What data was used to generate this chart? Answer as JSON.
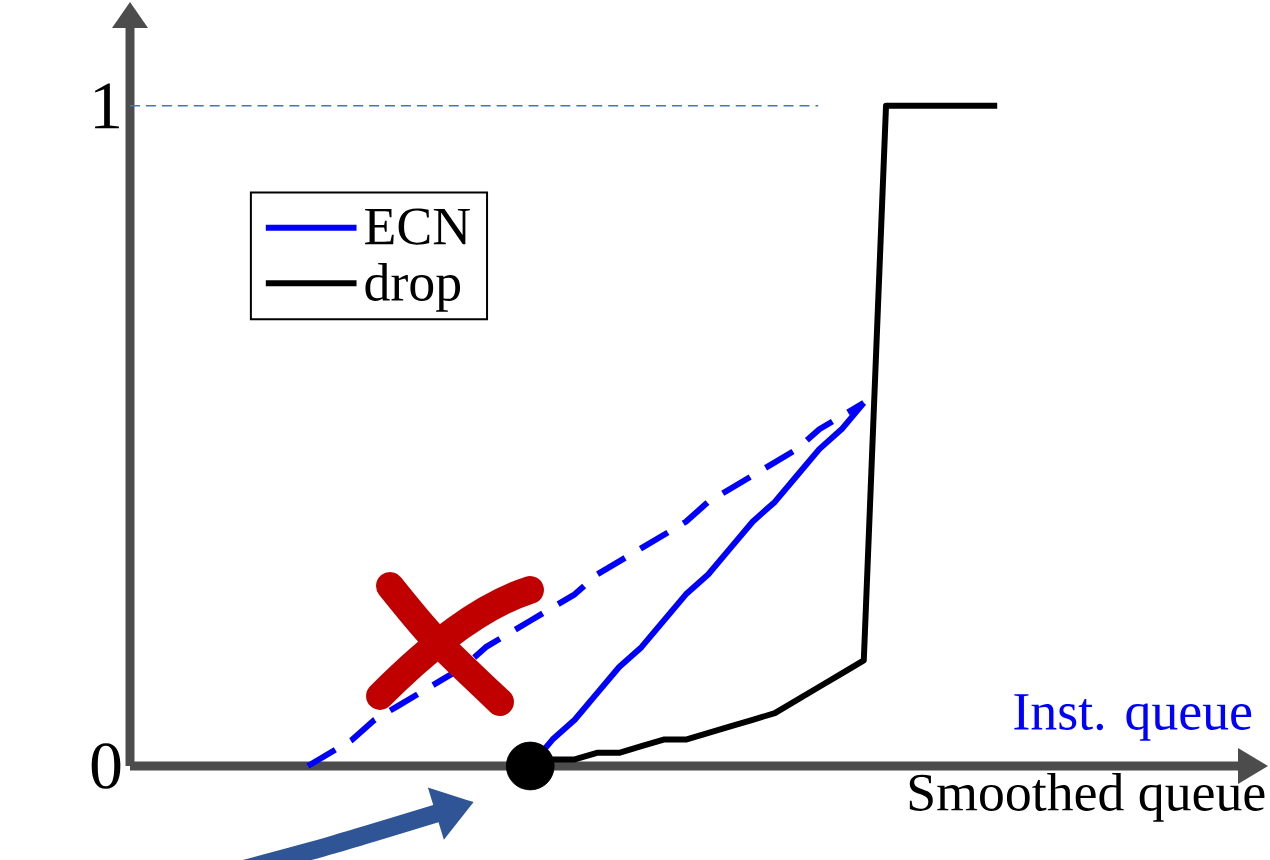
{
  "chart_data": {
    "type": "line",
    "xlabel": "Smoothed queue",
    "annotations": [
      "Inst. queue"
    ],
    "categories": [
      null,
      null,
      null,
      null,
      null,
      null,
      null,
      null,
      null,
      null,
      null,
      null,
      null,
      null,
      null,
      null,
      null,
      null,
      null,
      null,
      null,
      null,
      null,
      null,
      null,
      null,
      null,
      null,
      null,
      null,
      null,
      null,
      null,
      null,
      null,
      null,
      null,
      null,
      null,
      null
    ],
    "ylim": [
      0,
      1.13
    ],
    "yticks": [
      0,
      1
    ],
    "tick_labels": "y",
    "legend": "top left",
    "ref_lines": [
      {
        "axis": "y",
        "value": 1,
        "color": "#4472c4",
        "line_style": "dashed"
      }
    ],
    "series": [
      {
        "name": "ECN",
        "color": "#0000ff",
        "line_style": "solid",
        "values": [
          null,
          null,
          null,
          null,
          null,
          null,
          null,
          null,
          null,
          null,
          null,
          null,
          null,
          null,
          null,
          null,
          null,
          null,
          0,
          0.04,
          0.07,
          0.11,
          0.15,
          0.18,
          0.22,
          0.26,
          0.29,
          0.33,
          0.37,
          0.4,
          0.44,
          0.48,
          0.51,
          0.55,
          null,
          null,
          null,
          null,
          null,
          null
        ]
      },
      {
        "name": "drop",
        "color": "#000000",
        "line_style": "solid",
        "values": [
          null,
          null,
          null,
          null,
          null,
          null,
          null,
          null,
          null,
          null,
          null,
          null,
          null,
          null,
          null,
          null,
          null,
          null,
          0,
          0.01,
          0.01,
          0.02,
          0.02,
          0.03,
          0.04,
          0.04,
          0.05,
          0.06,
          0.07,
          0.08,
          0.1,
          0.12,
          0.14,
          0.16,
          1,
          1,
          1,
          1,
          1,
          1
        ]
      },
      {
        "color": "#0000ff",
        "line_style": "dashed",
        "values": [
          null,
          null,
          null,
          null,
          null,
          null,
          null,
          null,
          0,
          0.02,
          0.04,
          0.07,
          0.09,
          0.11,
          0.13,
          0.15,
          0.18,
          0.2,
          0.22,
          0.24,
          0.26,
          0.29,
          0.31,
          0.33,
          0.35,
          0.37,
          0.4,
          0.42,
          0.44,
          0.46,
          0.48,
          0.51,
          0.53,
          0.55,
          null,
          null,
          null,
          null,
          null,
          null
        ]
      },
      {
        "type": "scatter",
        "marker": "circle",
        "color": "#000000",
        "values": [
          null,
          null,
          null,
          null,
          null,
          null,
          null,
          null,
          null,
          null,
          null,
          null,
          null,
          null,
          null,
          null,
          null,
          null,
          0,
          null,
          null,
          null,
          null,
          null,
          null,
          null,
          null,
          null,
          null,
          null,
          null,
          null,
          null,
          null,
          null,
          null,
          null,
          null,
          null,
          null
        ]
      }
    ]
  }
}
